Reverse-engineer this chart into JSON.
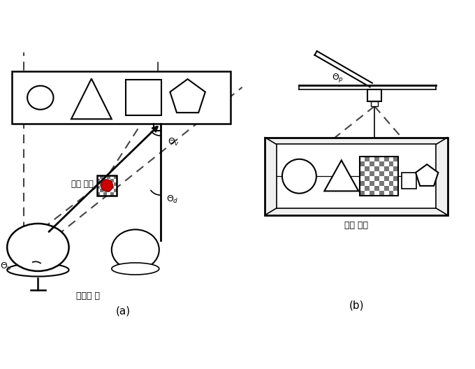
{
  "caption_a": "(a)",
  "caption_b": "(b)",
  "label_user_eye": "사용자 눈",
  "label_marker_center": "마커 중심",
  "label_left_view": "왼쪽 시점",
  "bg_color": "#ffffff",
  "checker_dark": "#777777",
  "red_color": "#cc0000",
  "dash_color": "#444444",
  "line_color": "#000000"
}
